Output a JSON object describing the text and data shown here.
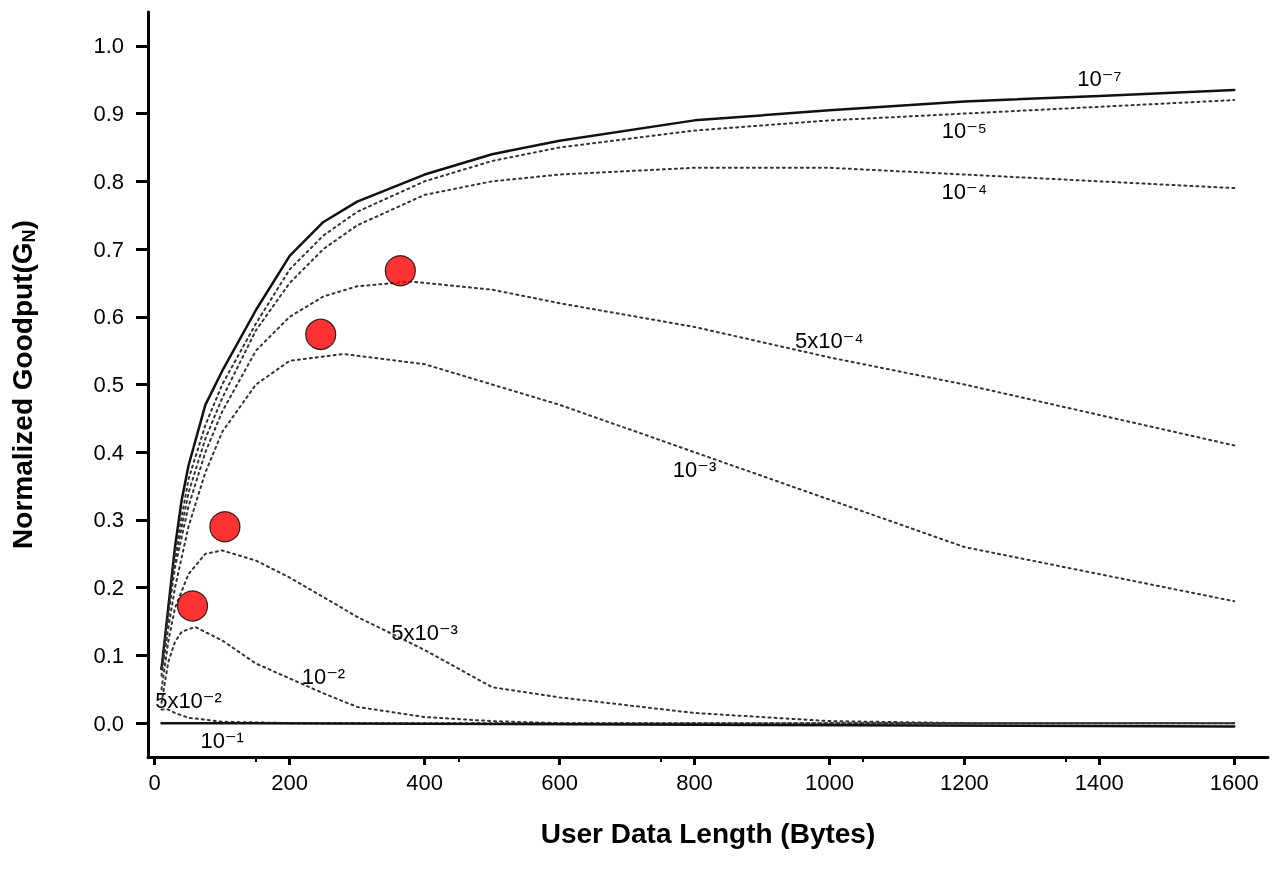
{
  "chart_data": {
    "type": "line",
    "xlabel": "User Data Length (Bytes)",
    "ylabel": "Normalized Goodput(G$_{N}$)",
    "xlim": [
      -10,
      1650
    ],
    "xticks": [
      0,
      200,
      400,
      600,
      800,
      1000,
      1200,
      1400,
      1600
    ],
    "ylim": [
      -0.05,
      1.05
    ],
    "yticks": [
      {
        "value": 0,
        "label": "0.0"
      },
      {
        "value": 0.1,
        "label": "0.1"
      },
      {
        "value": 0.2,
        "label": "0.2"
      },
      {
        "value": 0.3,
        "label": "0.3"
      },
      {
        "value": 0.4,
        "label": "0.4"
      },
      {
        "value": 0.5,
        "label": "0.5"
      },
      {
        "value": 0.6,
        "label": "0.6"
      },
      {
        "value": 0.7,
        "label": "0.7"
      },
      {
        "value": 0.8,
        "label": "0.8"
      },
      {
        "value": 0.9,
        "label": "0.9"
      },
      {
        "value": 1,
        "label": "1.0"
      }
    ],
    "grid": false,
    "marker": "none",
    "series": [
      {
        "color": "#111111",
        "line_style": "solid",
        "x": [
          10,
          20,
          30,
          40,
          50,
          75,
          100,
          150,
          200,
          250,
          300,
          400,
          500,
          600,
          800,
          1000,
          1200,
          1400,
          1600
        ],
        "values": [
          0.08,
          0.17,
          0.26,
          0.33,
          0.38,
          0.47,
          0.52,
          0.61,
          0.69,
          0.74,
          0.77,
          0.81,
          0.84,
          0.86,
          0.89,
          0.905,
          0.918,
          0.926,
          0.935
        ]
      },
      {
        "color": "#333333",
        "line_style": "dotted",
        "x": [
          10,
          20,
          30,
          50,
          75,
          100,
          150,
          200,
          250,
          300,
          400,
          500,
          600,
          800,
          1000,
          1200,
          1400,
          1600
        ],
        "values": [
          0.08,
          0.16,
          0.25,
          0.36,
          0.44,
          0.5,
          0.59,
          0.67,
          0.72,
          0.755,
          0.8,
          0.83,
          0.85,
          0.875,
          0.89,
          0.9,
          0.91,
          0.92
        ]
      },
      {
        "color": "#333333",
        "line_style": "dotted",
        "x": [
          10,
          20,
          30,
          50,
          75,
          100,
          150,
          200,
          250,
          300,
          400,
          500,
          600,
          800,
          1000,
          1200,
          1400,
          1600
        ],
        "values": [
          0.08,
          0.16,
          0.24,
          0.34,
          0.42,
          0.48,
          0.58,
          0.65,
          0.7,
          0.735,
          0.78,
          0.8,
          0.81,
          0.82,
          0.82,
          0.81,
          0.8,
          0.79
        ]
      },
      {
        "color": "#333333",
        "line_style": "dotted",
        "x": [
          10,
          20,
          30,
          50,
          75,
          100,
          150,
          200,
          250,
          300,
          380,
          500,
          600,
          800,
          1000,
          1200,
          1400,
          1600
        ],
        "values": [
          0.08,
          0.16,
          0.23,
          0.32,
          0.4,
          0.46,
          0.55,
          0.6,
          0.63,
          0.645,
          0.652,
          0.64,
          0.62,
          0.585,
          0.54,
          0.5,
          0.455,
          0.41
        ]
      },
      {
        "color": "#333333",
        "line_style": "dotted",
        "x": [
          10,
          20,
          30,
          50,
          75,
          100,
          150,
          200,
          280,
          400,
          500,
          600,
          800,
          1000,
          1200,
          1400,
          1600
        ],
        "values": [
          0.07,
          0.14,
          0.2,
          0.29,
          0.37,
          0.43,
          0.5,
          0.535,
          0.545,
          0.53,
          0.5,
          0.47,
          0.4,
          0.33,
          0.26,
          0.22,
          0.18
        ]
      },
      {
        "color": "#333333",
        "line_style": "dotted",
        "x": [
          10,
          20,
          30,
          50,
          75,
          100,
          150,
          200,
          300,
          400,
          500,
          600,
          800,
          1000,
          1200,
          1600
        ],
        "values": [
          0.05,
          0.12,
          0.17,
          0.22,
          0.25,
          0.255,
          0.24,
          0.215,
          0.157,
          0.108,
          0.053,
          0.038,
          0.015,
          0.003,
          0,
          0
        ]
      },
      {
        "color": "#333333",
        "line_style": "dotted",
        "x": [
          10,
          20,
          30,
          40,
          60,
          100,
          150,
          200,
          250,
          300,
          400,
          500,
          600,
          1600
        ],
        "values": [
          0.03,
          0.09,
          0.12,
          0.135,
          0.142,
          0.122,
          0.088,
          0.066,
          0.044,
          0.024,
          0.009,
          0.003,
          0,
          0
        ]
      },
      {
        "color": "#333333",
        "line_style": "dotted",
        "x": [
          10,
          20,
          30,
          50,
          100,
          200,
          1600
        ],
        "values": [
          0.02,
          0.02,
          0.015,
          0.008,
          0.002,
          0,
          0
        ]
      },
      {
        "color": "#111111",
        "line_style": "solid",
        "x": [
          10,
          100,
          1600
        ],
        "values": [
          0,
          0,
          -0.005
        ]
      },
      {
        "type": "scatter",
        "color": "#ff0000",
        "marker": "circle",
        "x": [
          56,
          104,
          246,
          364
        ],
        "values": [
          0.173,
          0.29,
          0.574,
          0.668
        ]
      }
    ],
    "annotations": [
      {
        "text": "10⁻⁷",
        "x": 1400,
        "y": 0.926
      },
      {
        "text": "10⁻⁵",
        "x": 1200,
        "y": 0.9
      },
      {
        "text": "10⁻⁴",
        "x": 1200,
        "y": 0.81
      },
      {
        "text": "5x10⁻⁴",
        "x": 1000,
        "y": 0.54
      },
      {
        "text": "10⁻³",
        "x": 800,
        "y": 0.4
      },
      {
        "text": "5x10⁻³",
        "x": 400,
        "y": 0.108
      },
      {
        "text": "10⁻²",
        "x": 250,
        "y": 0.044
      },
      {
        "text": "5x10⁻²",
        "x": 50,
        "y": 0.008
      },
      {
        "text": "10⁻¹",
        "x": 100,
        "y": 0
      }
    ]
  }
}
